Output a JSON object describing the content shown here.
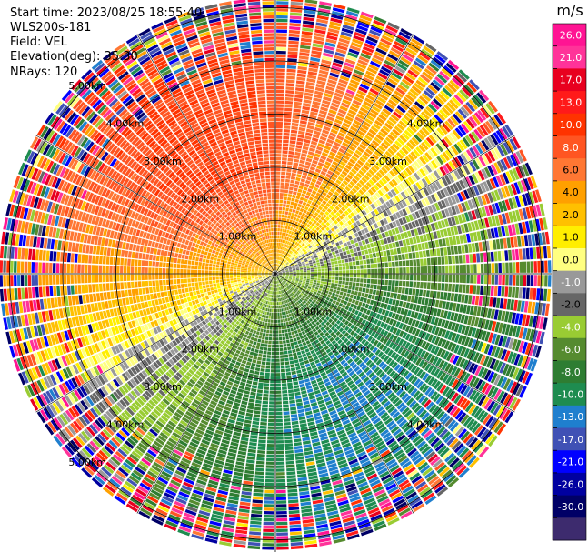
{
  "header": {
    "start_time": "Start time: 2023/08/25 18:55:40",
    "instrument": "WLS200s-181",
    "field": "Field: VEL",
    "elevation": "Elevation(deg): 35.30",
    "nrays": "NRays: 120"
  },
  "chart_data": {
    "type": "heatmap",
    "projection": "polar-ppi",
    "nrays": 120,
    "range_rings_km": [
      1.0,
      2.0,
      3.0,
      4.0,
      5.0
    ],
    "ring_labels": {
      "upper_left": [
        "1.00km",
        "2.00km",
        "3.00km",
        "4.00km",
        "5.00km"
      ],
      "upper_right": [
        "1.00km",
        "2.00km",
        "3.00km",
        "4.00km"
      ],
      "lower_left": [
        "1.00km",
        "2.00km",
        "3.00km",
        "4.00km",
        "5.00km"
      ],
      "lower_right": [
        "1.00km",
        "2.00km",
        "3.00km",
        "4.00km"
      ]
    },
    "max_range_km": 5.2,
    "colorbar": {
      "unit": "m/s",
      "ticks": [
        "26.0",
        "21.0",
        "17.0",
        "13.0",
        "10.0",
        "8.0",
        "6.0",
        "4.0",
        "2.0",
        "1.0",
        "0.0",
        "-1.0",
        "-2.0",
        "-4.0",
        "-6.0",
        "-8.0",
        "-10.0",
        "-13.0",
        "-17.0",
        "-21.0",
        "-26.0",
        "-30.0"
      ],
      "colors": [
        "#ff1493",
        "#ff3399",
        "#e8001f",
        "#ff1a1a",
        "#ff3300",
        "#ff5522",
        "#ff7733",
        "#ffa000",
        "#ffc000",
        "#ffee00",
        "#ffff80",
        "#999999",
        "#666666",
        "#99cc33",
        "#558b2f",
        "#2e7d32",
        "#1e8c50",
        "#1f7fce",
        "#3f51b5",
        "#0000ff",
        "#0000a0",
        "#000066",
        "#3d2b6e"
      ]
    },
    "wind_pattern": {
      "direction_note": "receding (positive) to north-northwest, approaching (negative) to south-southeast",
      "near_range_max_ms": 10.0,
      "noise_begins_km": 3.6
    }
  }
}
